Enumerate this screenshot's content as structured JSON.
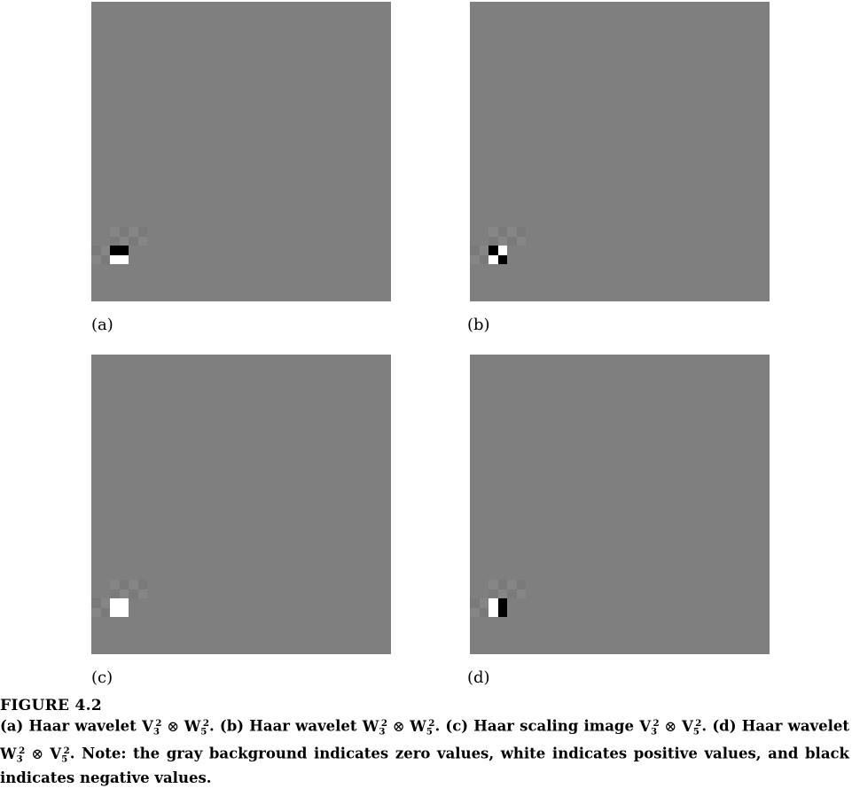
{
  "figure": {
    "panels": [
      {
        "label": "(a)",
        "description_id": "wavelet_V3xW5",
        "pattern": [
          [
            -1,
            -1
          ],
          [
            1,
            1
          ]
        ]
      },
      {
        "label": "(b)",
        "description_id": "wavelet_W3xW5",
        "pattern": [
          [
            -1,
            1
          ],
          [
            1,
            -1
          ]
        ]
      },
      {
        "label": "(c)",
        "description_id": "scaling_V3xV5",
        "pattern": [
          [
            1,
            1
          ],
          [
            1,
            1
          ]
        ]
      },
      {
        "label": "(d)",
        "description_id": "wavelet_W3xV5",
        "pattern": [
          [
            1,
            -1
          ],
          [
            1,
            -1
          ]
        ]
      }
    ],
    "colors": {
      "zero": "#7f7f7f",
      "positive": "#ffffff",
      "negative": "#000000",
      "faint_light": "#868686",
      "faint_dark": "#7a7a7a"
    },
    "caption": {
      "title": "FIGURE 4.2",
      "parts": {
        "a_label": "(a) Haar wavelet",
        "a_expr": [
          "V",
          "3",
          "2",
          "⊗",
          "W",
          "5",
          "2"
        ],
        "b_label": "(b) Haar wavelet",
        "b_expr": [
          "W",
          "3",
          "2",
          "⊗",
          "W",
          "5",
          "2"
        ],
        "c_label": "(c) Haar scaling image",
        "c_expr": [
          "V",
          "3",
          "2",
          "⊗",
          "V",
          "5",
          "2"
        ],
        "d_label": "(d) Haar wavelet",
        "d_expr": [
          "W",
          "3",
          "2",
          "⊗",
          "V",
          "5",
          "2"
        ],
        "note": "Note: the gray background indicates zero values, white indicates positive values, and black indicates negative values."
      }
    }
  }
}
